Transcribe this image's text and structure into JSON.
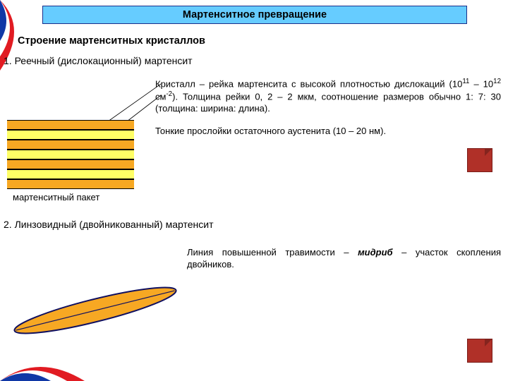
{
  "colors": {
    "title_bg": "#66ccff",
    "title_border": "#1a2f8a",
    "orange": "#f7a823",
    "yellow": "#ffff66",
    "redbox": "#b03028",
    "corner_red": "#e11b22",
    "corner_blue": "#1038a6",
    "lens_outline": "#101060"
  },
  "title": "Мартенситное превращение",
  "subtitle": "Строение мартенситных кристаллов",
  "section1": {
    "heading": "1. Реечный (дислокационный) мартенсит",
    "desc_a_pre": "Кристалл – рейка мартенсита с высокой плотностью дислокаций (10",
    "exp1": "11",
    "desc_a_mid": " – 10",
    "exp2": "12",
    "desc_a_unit_pre": " см",
    "exp3": "-2",
    "desc_a_post": "). Толщина рейки 0, 2 – 2 мкм, соотношение размеров обычно 1: 7: 30 (толщина: ширина: длина).",
    "desc_b": "Тонкие прослойки остаточного аустенита (10 – 20 нм).",
    "caption": "мартенситный пакет",
    "layers": [
      {
        "c": "#f7a823"
      },
      {
        "c": "#ffff66"
      },
      {
        "c": "#f7a823"
      },
      {
        "c": "#ffff66"
      },
      {
        "c": "#f7a823"
      },
      {
        "c": "#ffff66"
      },
      {
        "c": "#f7a823"
      }
    ]
  },
  "section2": {
    "heading": "2. Линзовидный (двойникованный) мартенсит",
    "desc_pre": "Линия повышенной травимости – ",
    "midrib": "мидриб",
    "desc_post": " – участок скопления двойников.",
    "lens": {
      "fill": "#f7a823",
      "stroke": "#101060",
      "midrib_stroke": "#101060"
    }
  }
}
